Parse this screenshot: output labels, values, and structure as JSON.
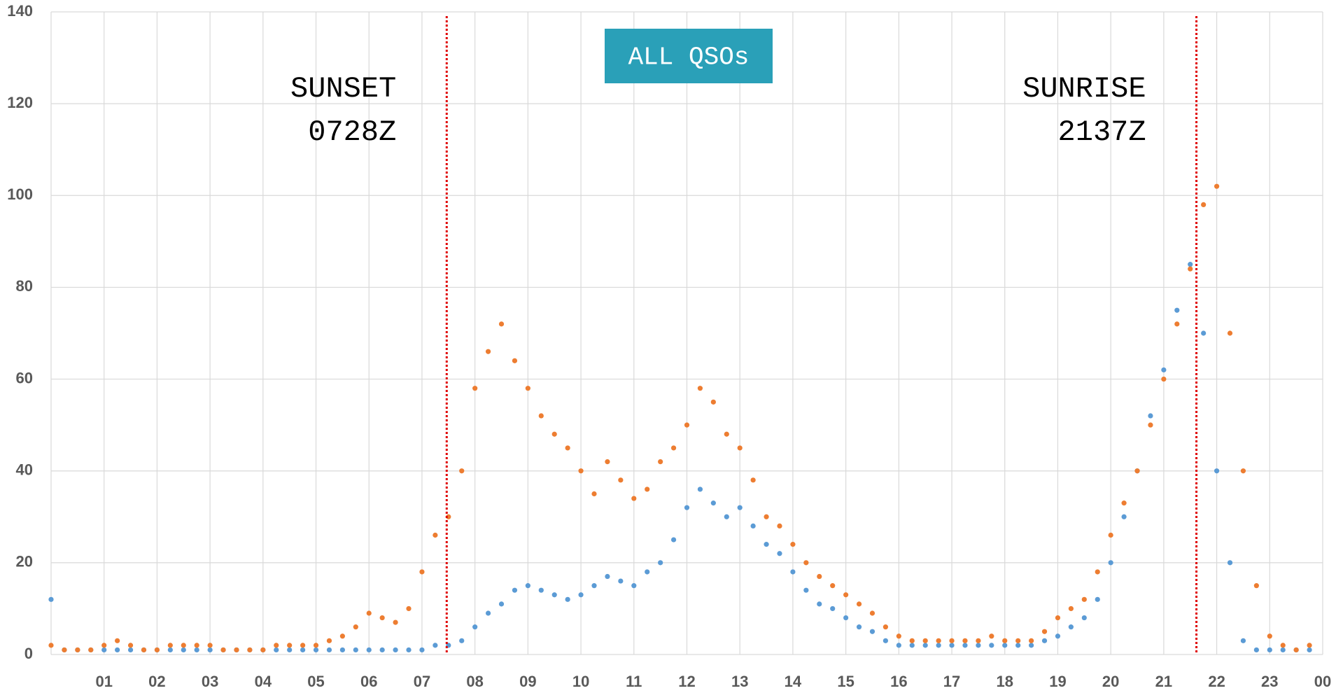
{
  "chart_data": {
    "type": "scatter",
    "title": "ALL QSOs",
    "x": [
      0,
      0.25,
      0.5,
      0.75,
      1,
      1.25,
      1.5,
      1.75,
      2,
      2.25,
      2.5,
      2.75,
      3,
      3.25,
      3.5,
      3.75,
      4,
      4.25,
      4.5,
      4.75,
      5,
      5.25,
      5.5,
      5.75,
      6,
      6.25,
      6.5,
      6.75,
      7,
      7.25,
      7.5,
      7.75,
      8,
      8.25,
      8.5,
      8.75,
      9,
      9.25,
      9.5,
      9.75,
      10,
      10.25,
      10.5,
      10.75,
      11,
      11.25,
      11.5,
      11.75,
      12,
      12.25,
      12.5,
      12.75,
      13,
      13.25,
      13.5,
      13.75,
      14,
      14.25,
      14.5,
      14.75,
      15,
      15.25,
      15.5,
      15.75,
      16,
      16.25,
      16.5,
      16.75,
      17,
      17.25,
      17.5,
      17.75,
      18,
      18.25,
      18.5,
      18.75,
      19,
      19.25,
      19.5,
      19.75,
      20,
      20.25,
      20.5,
      20.75,
      21,
      21.25,
      21.5,
      21.75,
      22,
      22.25,
      22.5,
      22.75,
      23,
      23.25,
      23.5,
      23.75
    ],
    "series": [
      {
        "color": "#5b9bd5",
        "values": [
          12,
          1,
          1,
          1,
          1,
          1,
          1,
          1,
          1,
          1,
          1,
          1,
          1,
          1,
          1,
          1,
          1,
          1,
          1,
          1,
          1,
          1,
          1,
          1,
          1,
          1,
          1,
          1,
          1,
          2,
          2,
          3,
          6,
          9,
          11,
          14,
          15,
          14,
          13,
          12,
          13,
          15,
          17,
          16,
          15,
          18,
          20,
          25,
          32,
          36,
          33,
          30,
          32,
          28,
          24,
          22,
          18,
          14,
          11,
          10,
          8,
          6,
          5,
          3,
          2,
          2,
          2,
          2,
          2,
          2,
          2,
          2,
          2,
          2,
          2,
          3,
          4,
          6,
          8,
          12,
          20,
          30,
          40,
          52,
          62,
          75,
          85,
          70,
          40,
          20,
          3,
          1,
          1,
          1,
          1,
          1
        ]
      },
      {
        "color": "#ed7d31",
        "values": [
          2,
          1,
          1,
          1,
          2,
          3,
          2,
          1,
          1,
          2,
          2,
          2,
          2,
          1,
          1,
          1,
          1,
          2,
          2,
          2,
          2,
          3,
          4,
          6,
          9,
          8,
          7,
          10,
          18,
          26,
          30,
          40,
          58,
          66,
          72,
          64,
          58,
          52,
          48,
          45,
          40,
          35,
          42,
          38,
          34,
          36,
          42,
          45,
          50,
          58,
          55,
          48,
          45,
          38,
          30,
          28,
          24,
          20,
          17,
          15,
          13,
          11,
          9,
          6,
          4,
          3,
          3,
          3,
          3,
          3,
          3,
          4,
          3,
          3,
          3,
          5,
          8,
          10,
          12,
          18,
          26,
          33,
          40,
          50,
          60,
          72,
          84,
          98,
          102,
          70,
          40,
          15,
          4,
          2,
          1,
          2
        ]
      }
    ],
    "xlim": [
      0,
      24
    ],
    "xticks": [
      {
        "value": 1,
        "label": "01"
      },
      {
        "value": 2,
        "label": "02"
      },
      {
        "value": 3,
        "label": "03"
      },
      {
        "value": 4,
        "label": "04"
      },
      {
        "value": 5,
        "label": "05"
      },
      {
        "value": 6,
        "label": "06"
      },
      {
        "value": 7,
        "label": "07"
      },
      {
        "value": 8,
        "label": "08"
      },
      {
        "value": 9,
        "label": "09"
      },
      {
        "value": 10,
        "label": "10"
      },
      {
        "value": 11,
        "label": "11"
      },
      {
        "value": 12,
        "label": "12"
      },
      {
        "value": 13,
        "label": "13"
      },
      {
        "value": 14,
        "label": "14"
      },
      {
        "value": 15,
        "label": "15"
      },
      {
        "value": 16,
        "label": "16"
      },
      {
        "value": 17,
        "label": "17"
      },
      {
        "value": 18,
        "label": "18"
      },
      {
        "value": 19,
        "label": "19"
      },
      {
        "value": 20,
        "label": "20"
      },
      {
        "value": 21,
        "label": "21"
      },
      {
        "value": 22,
        "label": "22"
      },
      {
        "value": 23,
        "label": "23"
      },
      {
        "value": 24,
        "label": "00"
      }
    ],
    "ylim": [
      0,
      140
    ],
    "yticks": [
      0,
      20,
      40,
      60,
      80,
      100,
      120,
      140
    ],
    "grid": true,
    "annotations": [
      {
        "x": 7.4667,
        "lines": [
          "SUNSET",
          "0728Z"
        ],
        "color": "#e00000"
      },
      {
        "x": 21.6167,
        "lines": [
          "SUNRISE",
          "2137Z"
        ],
        "color": "#e00000"
      }
    ]
  }
}
